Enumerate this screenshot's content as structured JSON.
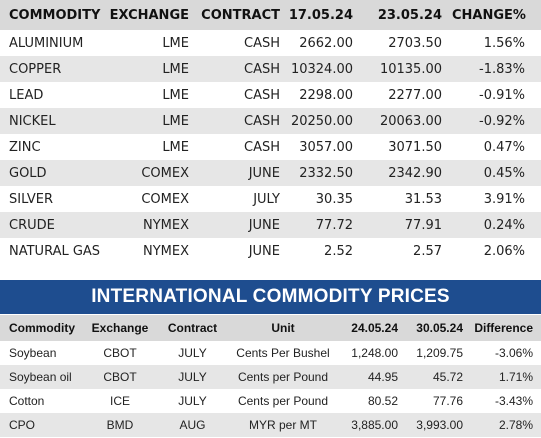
{
  "top_table": {
    "headers": [
      "COMMODITY",
      "EXCHANGE",
      "CONTRACT",
      "17.05.24",
      "23.05.24",
      "CHANGE%"
    ],
    "rows": [
      [
        "ALUMINIUM",
        "LME",
        "CASH",
        "2662.00",
        "2703.50",
        "1.56%"
      ],
      [
        "COPPER",
        "LME",
        "CASH",
        "10324.00",
        "10135.00",
        "-1.83%"
      ],
      [
        "LEAD",
        "LME",
        "CASH",
        "2298.00",
        "2277.00",
        "-0.91%"
      ],
      [
        "NICKEL",
        "LME",
        "CASH",
        "20250.00",
        "20063.00",
        "-0.92%"
      ],
      [
        "ZINC",
        "LME",
        "CASH",
        "3057.00",
        "3071.50",
        "0.47%"
      ],
      [
        "GOLD",
        "COMEX",
        "JUNE",
        "2332.50",
        "2342.90",
        "0.45%"
      ],
      [
        "SILVER",
        "COMEX",
        "JULY",
        "30.35",
        "31.53",
        "3.91%"
      ],
      [
        "CRUDE",
        "NYMEX",
        "JUNE",
        "77.72",
        "77.91",
        "0.24%"
      ],
      [
        "NATURAL GAS",
        "NYMEX",
        "JUNE",
        "2.52",
        "2.57",
        "2.06%"
      ]
    ]
  },
  "banner": {
    "title": "INTERNATIONAL COMMODITY PRICES"
  },
  "bottom_table": {
    "headers": [
      "Commodity",
      "Exchange",
      "Contract",
      "Unit",
      "24.05.24",
      "30.05.24",
      "Difference"
    ],
    "rows": [
      [
        "Soybean",
        "CBOT",
        "JULY",
        "Cents Per Bushel",
        "1,248.00",
        "1,209.75",
        "-3.06%"
      ],
      [
        "Soybean oil",
        "CBOT",
        "JULY",
        "Cents per Pound",
        "44.95",
        "45.72",
        "1.71%"
      ],
      [
        "Cotton",
        "ICE",
        "JULY",
        "Cents per Pound",
        "80.52",
        "77.76",
        "-3.43%"
      ],
      [
        "CPO",
        "BMD",
        "AUG",
        "MYR per MT",
        "3,885.00",
        "3,993.00",
        "2.78%"
      ]
    ]
  },
  "colors": {
    "banner_bg": "#1e4d8f",
    "header_bg": "#d9d9d9",
    "stripe_bg": "#e6e6e6"
  }
}
